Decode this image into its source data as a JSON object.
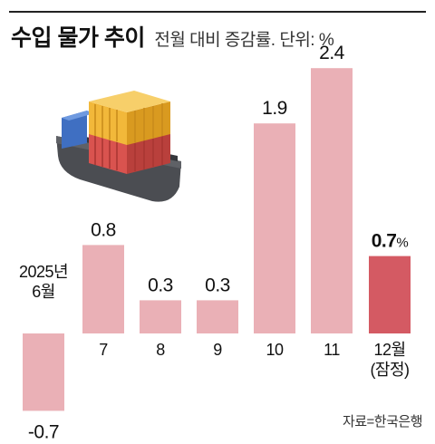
{
  "header": {
    "title": "수입 물가 추이",
    "subtitle": "전월 대비 증감률. 단위: %"
  },
  "source": "자료=한국은행",
  "colors": {
    "bar": "#eab0b6",
    "highlight_bar": "#d45a63",
    "text": "#111111",
    "rule": "#222222"
  },
  "illustration": {
    "icon": "cargo-ship-with-containers-icon"
  },
  "chart_data": {
    "type": "bar",
    "title": "수입 물가 추이",
    "subtitle": "전월 대비 증감률. 단위: %",
    "unit": "%",
    "categories": [
      [
        "2025년",
        "6월"
      ],
      [
        "7"
      ],
      [
        "8"
      ],
      [
        "9"
      ],
      [
        "10"
      ],
      [
        "11"
      ],
      [
        "12월",
        "(잠정)"
      ]
    ],
    "values": [
      -0.7,
      0.8,
      0.3,
      0.3,
      1.9,
      2.4,
      0.7
    ],
    "value_labels": [
      "-0.7",
      "0.8",
      "0.3",
      "0.3",
      "1.9",
      "2.4",
      "0.7"
    ],
    "highlight_index": 6,
    "highlight_suffix": "%",
    "ylim": [
      -0.7,
      2.4
    ],
    "grid": false,
    "legend": "none",
    "xlabel": "",
    "ylabel": ""
  }
}
